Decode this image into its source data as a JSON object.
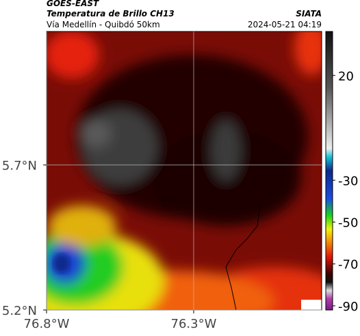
{
  "header": {
    "title": "GOES-EAST",
    "subtitle": "Temperatura de Brillo CH13",
    "region": "Vía Medellín - Quibdó 50km",
    "source": "SIATA",
    "timestamp": "2024-05-21 04:19"
  },
  "map": {
    "type": "map",
    "xlim": [
      -76.8,
      -75.865
    ],
    "ylim": [
      5.2,
      6.16
    ],
    "xticks": [
      {
        "value": -76.8,
        "label": "76.8°W"
      },
      {
        "value": -76.3,
        "label": "76.3°W"
      }
    ],
    "yticks": [
      {
        "value": 5.2,
        "label": "5.2°N"
      },
      {
        "value": 5.7,
        "label": "5.7°N"
      }
    ],
    "grid": true,
    "colorbar": {
      "lim": [
        -92,
        41
      ],
      "ticks": [
        20,
        -30,
        -50,
        -70,
        -90
      ]
    }
  }
}
